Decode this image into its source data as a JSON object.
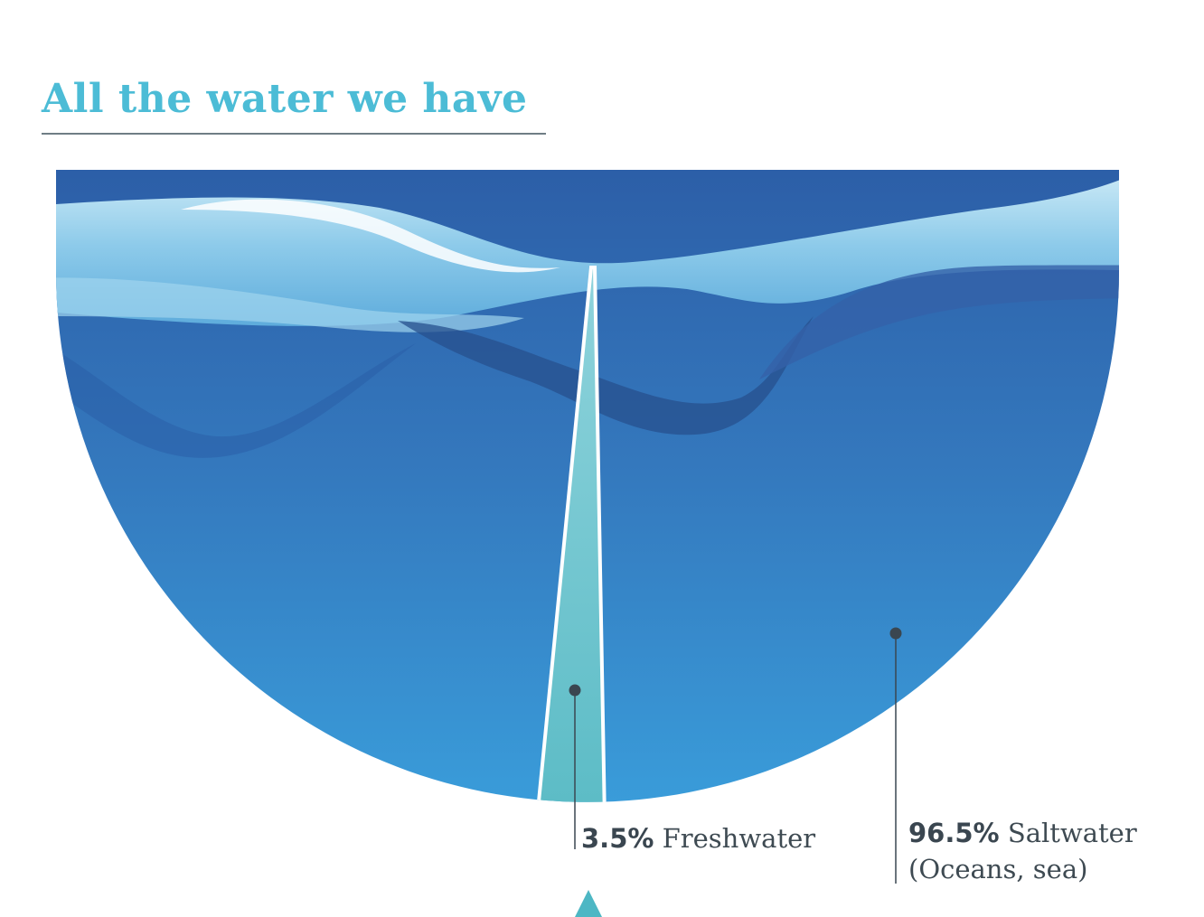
{
  "title": "All the water we have",
  "chart_data": {
    "type": "pie",
    "categories": [
      "Freshwater",
      "Saltwater"
    ],
    "values": [
      3.5,
      96.5
    ],
    "unit": "%",
    "slices": [
      {
        "pct_label": "3.5%",
        "name": "Freshwater",
        "note": "",
        "color": "#6cc3cb"
      },
      {
        "pct_label": "96.5%",
        "name": "Saltwater",
        "note": "(Oceans, sea)",
        "color": "#2f7fc1"
      }
    ],
    "colors": {
      "title": "#4cbcd6",
      "water_deep": "#2e6db0",
      "water_light": "#3ba1dc",
      "surface_light": "#b7e0f1",
      "freshwater": "#6cc3cb",
      "leader": "#3a4650"
    }
  }
}
